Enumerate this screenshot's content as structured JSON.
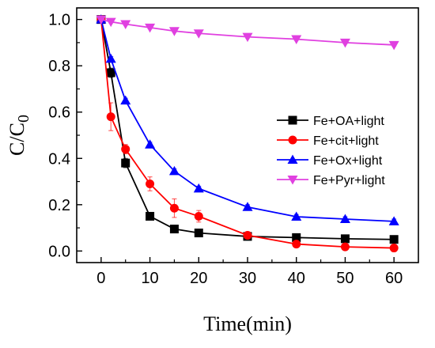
{
  "chart_data": {
    "type": "line",
    "xlabel": "Time(min)",
    "ylabel_main": "C/C",
    "ylabel_sub": "0",
    "xlim": [
      -5,
      65
    ],
    "ylim": [
      -0.05,
      1.05
    ],
    "xticks": [
      "0",
      "10",
      "20",
      "30",
      "40",
      "50",
      "60"
    ],
    "yticks": [
      "0.0",
      "0.2",
      "0.4",
      "0.6",
      "0.8",
      "1.0"
    ],
    "grid": false,
    "legend_position": "center-right",
    "series": [
      {
        "name": "Fe+OA+light",
        "color": "#000000",
        "marker": "square",
        "x": [
          0,
          2,
          5,
          10,
          15,
          20,
          30,
          40,
          50,
          60
        ],
        "y": [
          1.0,
          0.77,
          0.38,
          0.15,
          0.095,
          0.078,
          0.063,
          0.058,
          0.053,
          0.05
        ],
        "err": [
          0,
          0.02,
          0.02,
          0.01,
          0.01,
          0.005,
          0.005,
          0.005,
          0.005,
          0.005
        ]
      },
      {
        "name": "Fe+cit+light",
        "color": "#ff0000",
        "marker": "circle",
        "x": [
          0,
          2,
          5,
          10,
          15,
          20,
          30,
          40,
          50,
          60
        ],
        "y": [
          1.0,
          0.58,
          0.44,
          0.29,
          0.185,
          0.15,
          0.068,
          0.03,
          0.018,
          0.013
        ],
        "err": [
          0,
          0.06,
          0.02,
          0.03,
          0.04,
          0.025,
          0.01,
          0.01,
          0.005,
          0.005
        ]
      },
      {
        "name": "Fe+Ox+light",
        "color": "#0000ff",
        "marker": "triangle-up",
        "x": [
          0,
          2,
          5,
          10,
          15,
          20,
          30,
          40,
          50,
          60
        ],
        "y": [
          1.0,
          0.83,
          0.65,
          0.46,
          0.345,
          0.27,
          0.19,
          0.148,
          0.138,
          0.128
        ],
        "err": [
          0,
          0.01,
          0.01,
          0.01,
          0.01,
          0.01,
          0.01,
          0.01,
          0.01,
          0.01
        ]
      },
      {
        "name": "Fe+Pyr+light",
        "color": "#e040e0",
        "marker": "triangle-down",
        "x": [
          0,
          2,
          5,
          10,
          15,
          20,
          30,
          40,
          50,
          60
        ],
        "y": [
          1.0,
          0.99,
          0.98,
          0.965,
          0.95,
          0.94,
          0.925,
          0.915,
          0.9,
          0.89
        ],
        "err": [
          0,
          0.005,
          0.005,
          0.005,
          0.005,
          0.005,
          0.005,
          0.005,
          0.005,
          0.005
        ]
      }
    ]
  }
}
